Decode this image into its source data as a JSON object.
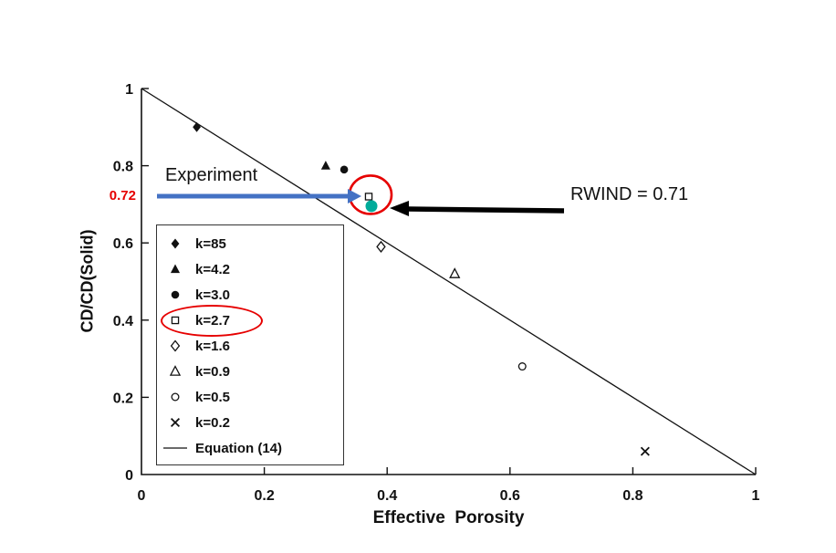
{
  "chart_data": {
    "type": "scatter",
    "title": "",
    "xlabel": "Effective  Porosity",
    "ylabel": "CD/CD(Solid)",
    "xlim": [
      0,
      1
    ],
    "ylim": [
      0,
      1
    ],
    "grid": false,
    "legend_position": "inside-left",
    "x_ticks": [
      "0",
      "0.2",
      "0.4",
      "0.6",
      "0.8",
      "1"
    ],
    "x_tick_values": [
      0,
      0.2,
      0.4,
      0.6,
      0.8,
      1
    ],
    "y_ticks": [
      "0",
      "0.2",
      "0.4",
      "0.6",
      "0.8",
      "1"
    ],
    "y_tick_values": [
      0,
      0.2,
      0.4,
      0.6,
      0.8,
      1
    ],
    "series": [
      {
        "name": "k=85",
        "marker": "diamond-filled",
        "points": [
          [
            0.09,
            0.9
          ]
        ]
      },
      {
        "name": "k=4.2",
        "marker": "triangle-filled",
        "points": [
          [
            0.3,
            0.8
          ]
        ]
      },
      {
        "name": "k=3.0",
        "marker": "circle-filled",
        "points": [
          [
            0.33,
            0.79
          ]
        ]
      },
      {
        "name": "k=2.7",
        "marker": "square-open",
        "points": [
          [
            0.37,
            0.72
          ]
        ]
      },
      {
        "name": "k=1.6",
        "marker": "diamond-open",
        "points": [
          [
            0.39,
            0.59
          ]
        ]
      },
      {
        "name": "k=0.9",
        "marker": "triangle-open",
        "points": [
          [
            0.51,
            0.52
          ]
        ]
      },
      {
        "name": "k=0.5",
        "marker": "circle-open",
        "points": [
          [
            0.62,
            0.28
          ]
        ]
      },
      {
        "name": "k=0.2",
        "marker": "x",
        "points": [
          [
            0.82,
            0.06
          ]
        ]
      }
    ],
    "line_series": {
      "name": "Equation (14)",
      "marker": "line",
      "from": [
        0,
        1
      ],
      "to": [
        1,
        0
      ]
    }
  },
  "annotations": {
    "experiment": {
      "label": "Experiment",
      "arrow_color": "#4472c4"
    },
    "rwind": {
      "label": "RWIND = 0.71",
      "arrow_color": "#000000",
      "dot_color": "#00ab9a",
      "dot_point": [
        0.37,
        0.7
      ]
    },
    "y_highlight": {
      "label": "0.72",
      "value": 0.72,
      "color": "#e60000"
    },
    "highlight_circle": {
      "color": "#e60000",
      "point": [
        0.37,
        0.72
      ]
    },
    "legend_highlight": {
      "color": "#e60000",
      "item": "k=2.7"
    }
  }
}
